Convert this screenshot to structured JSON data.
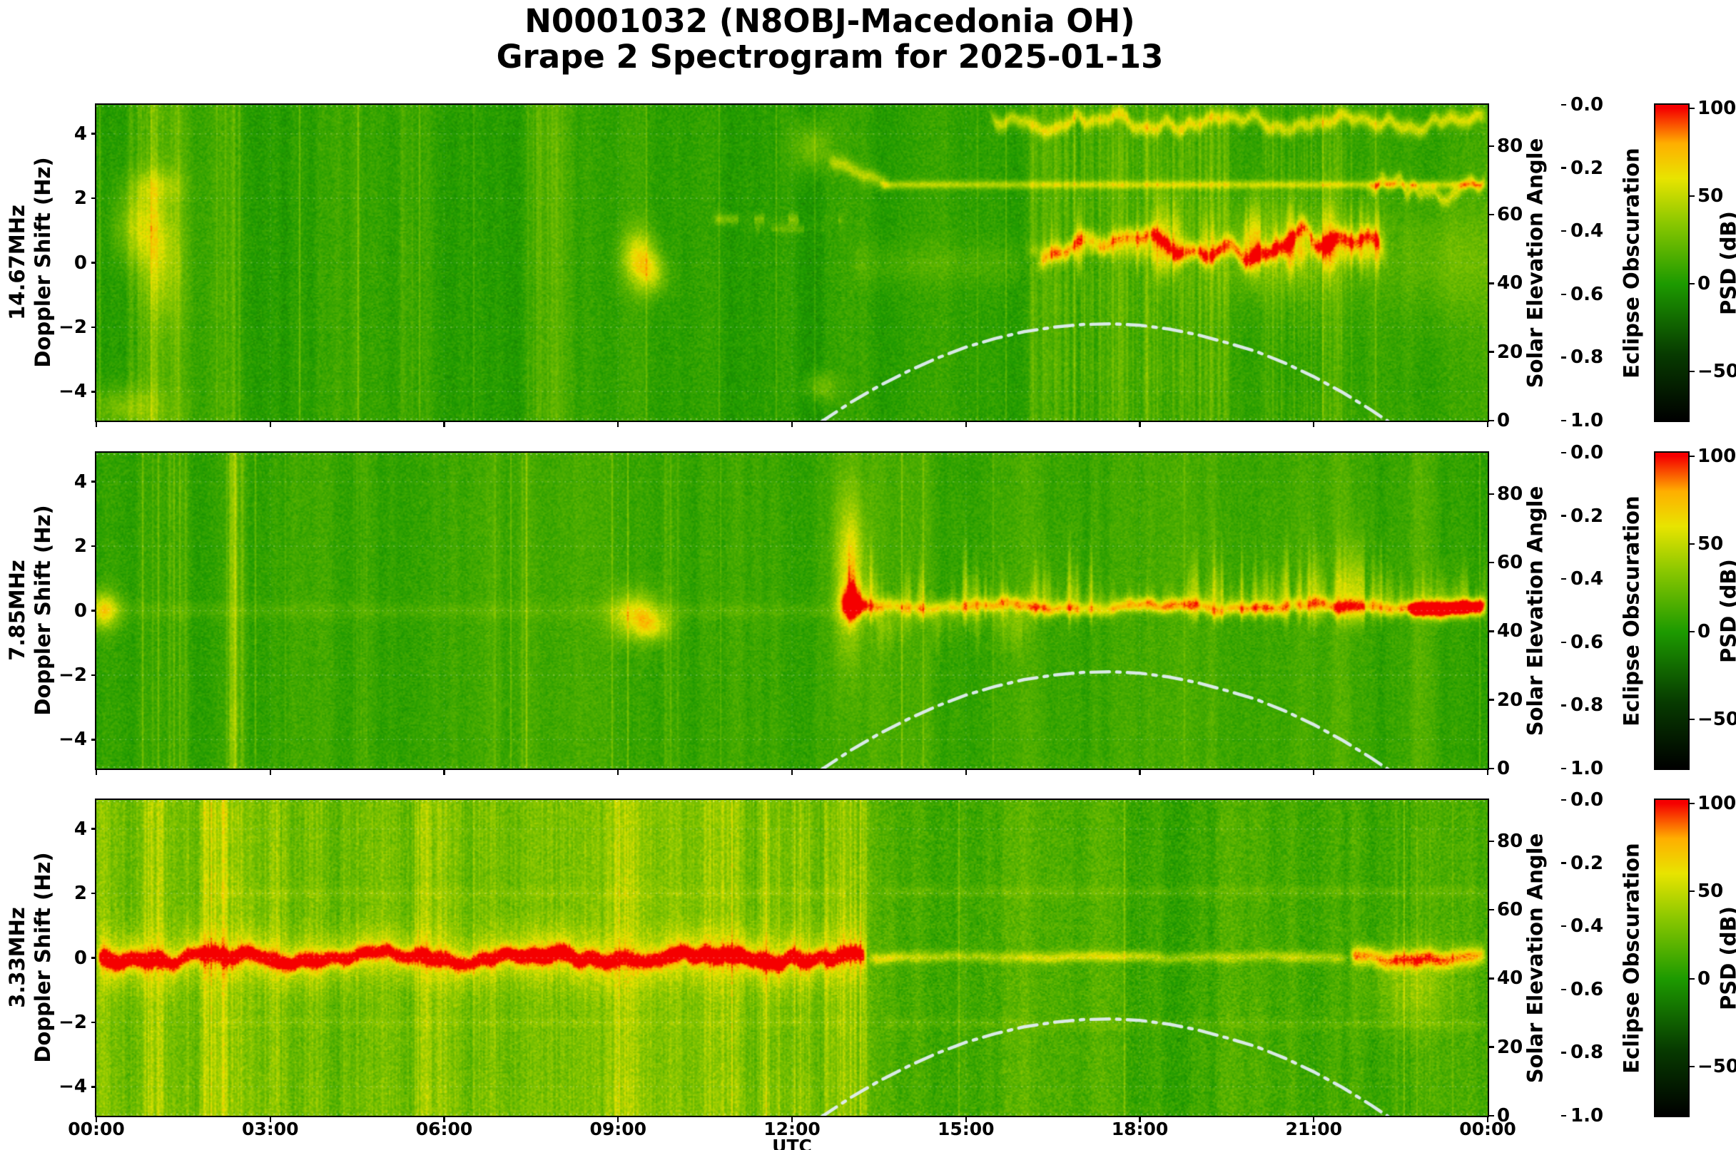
{
  "title": {
    "line1": "N0001032 (N8OBJ-Macedonia OH)",
    "line2": "Grape 2 Spectrogram for 2025-01-13"
  },
  "axes": {
    "x": {
      "label": "UTC",
      "ticks": [
        {
          "h": 0,
          "label": "00:00"
        },
        {
          "h": 3,
          "label": "03:00"
        },
        {
          "h": 6,
          "label": "06:00"
        },
        {
          "h": 9,
          "label": "09:00"
        },
        {
          "h": 12,
          "label": "12:00"
        },
        {
          "h": 15,
          "label": "15:00"
        },
        {
          "h": 18,
          "label": "18:00"
        },
        {
          "h": 21,
          "label": "21:00"
        },
        {
          "h": 24,
          "label": "00:00"
        }
      ]
    },
    "doppler": {
      "label": "Doppler Shift (Hz)",
      "range": [
        -4.9,
        4.9
      ],
      "ticks": [
        {
          "v": 4,
          "label": "4"
        },
        {
          "v": 2,
          "label": "2"
        },
        {
          "v": 0,
          "label": "0"
        },
        {
          "v": -2,
          "label": "−2"
        },
        {
          "v": -4,
          "label": "−4"
        }
      ]
    },
    "solar": {
      "label": "Solar Elevation Angle",
      "range": [
        0,
        92
      ],
      "ticks": [
        {
          "v": 80,
          "label": "80"
        },
        {
          "v": 60,
          "label": "60"
        },
        {
          "v": 40,
          "label": "40"
        },
        {
          "v": 20,
          "label": "20"
        },
        {
          "v": 0,
          "label": "0"
        }
      ]
    },
    "eclipse": {
      "label": "Eclipse Obscuration",
      "range": [
        0,
        1
      ],
      "reversed": true,
      "ticks": [
        {
          "v": 0.0,
          "label": "0.0"
        },
        {
          "v": 0.2,
          "label": "0.2"
        },
        {
          "v": 0.4,
          "label": "0.4"
        },
        {
          "v": 0.6,
          "label": "0.6"
        },
        {
          "v": 0.8,
          "label": "0.8"
        },
        {
          "v": 1.0,
          "label": "1.0"
        }
      ]
    },
    "colorbar": {
      "label": "PSD (dB)",
      "range": [
        -78,
        102
      ],
      "ticks": [
        {
          "v": 100,
          "label": "100"
        },
        {
          "v": 50,
          "label": "50"
        },
        {
          "v": 0,
          "label": "0"
        },
        {
          "v": -50,
          "label": "−50"
        }
      ]
    }
  },
  "panels": [
    {
      "freq_label": "14.67MHz"
    },
    {
      "freq_label": "7.85MHz"
    },
    {
      "freq_label": "3.33MHz"
    }
  ],
  "chart_data": {
    "type": "heatmap",
    "subtype": "doppler-spectrogram",
    "station": "N0001032",
    "callsign": "N8OBJ-Macedonia OH",
    "date": "2025-01-13",
    "x_unit": "UTC hours",
    "x_range": [
      0,
      24
    ],
    "y_unit": "Doppler Shift (Hz)",
    "y_range": [
      -4.9,
      4.9
    ],
    "color_unit": "PSD (dB)",
    "color_range": [
      -78,
      102
    ],
    "colormap": [
      [
        -78,
        "#000000"
      ],
      [
        -40,
        "#073b00"
      ],
      [
        0,
        "#1d9a00"
      ],
      [
        35,
        "#8cc800"
      ],
      [
        60,
        "#e8e400"
      ],
      [
        80,
        "#ffae00"
      ],
      [
        100,
        "#f50000"
      ]
    ],
    "solar_elevation": {
      "style": "dash-dot",
      "color": "#e4eef2",
      "max_deg": 28.2,
      "noon_utc": 17.4,
      "points": [
        [
          12.5,
          -0.4
        ],
        [
          13,
          5.2
        ],
        [
          13.5,
          10.1
        ],
        [
          14,
          14.4
        ],
        [
          14.5,
          18.2
        ],
        [
          15,
          21.4
        ],
        [
          15.5,
          23.9
        ],
        [
          16,
          25.9
        ],
        [
          16.5,
          27.2
        ],
        [
          17,
          28.0
        ],
        [
          17.5,
          28.2
        ],
        [
          18,
          27.8
        ],
        [
          18.5,
          26.7
        ],
        [
          19,
          25.0
        ],
        [
          19.5,
          22.7
        ],
        [
          20,
          20.2
        ],
        [
          20.5,
          16.8
        ],
        [
          21,
          12.8
        ],
        [
          21.5,
          8.2
        ],
        [
          22,
          3.0
        ],
        [
          22.5,
          -2.7
        ],
        [
          23,
          -9.1
        ]
      ]
    },
    "eclipse_obscuration": {
      "curve_visible": false
    },
    "panels": [
      {
        "frequency": "14.67MHz",
        "base": 7,
        "noise": 9,
        "streak": [
          4,
          6
        ],
        "summary": "Quiet green background with vertical fade streaks; bright wiggly trace near +4.3 Hz after 15:30; thin line at +2.4 Hz after 13:30; turbulent yellow-orange activity around 0 to +1 Hz from 16:00 to 22:30; isolated bright blobs near 09:20 and 00:30-01:30.",
        "features": [
          {
            "type": "vband",
            "t": [
              0.5,
              1.5
            ],
            "amp": 13
          },
          {
            "type": "blob",
            "t": 0.75,
            "f": 1.1,
            "rt": 0.28,
            "rf": 0.85,
            "amp": 36
          },
          {
            "type": "blob",
            "t": 1.15,
            "f": 0.1,
            "rt": 0.22,
            "rf": 1.3,
            "amp": 26
          },
          {
            "type": "blob",
            "t": 0.5,
            "f": -4.5,
            "rt": 0.45,
            "rf": 0.45,
            "amp": 26
          },
          {
            "type": "blob",
            "t": 1.05,
            "f": 2.4,
            "rt": 0.3,
            "rf": 0.35,
            "amp": 22
          },
          {
            "type": "vband",
            "t": [
              2.0,
              2.6
            ],
            "amp": 11
          },
          {
            "type": "vband",
            "t": [
              5.2,
              5.55
            ],
            "amp": 9
          },
          {
            "type": "vband",
            "t": [
              7.3,
              8.1
            ],
            "amp": 9
          },
          {
            "type": "blob",
            "t": 9.35,
            "f": 0.15,
            "rt": 0.2,
            "rf": 0.6,
            "amp": 52
          },
          {
            "type": "blob",
            "t": 9.6,
            "f": -0.35,
            "rt": 0.17,
            "rf": 0.45,
            "amp": 34
          },
          {
            "type": "hline",
            "t": [
              10.6,
              12.9
            ],
            "f": 1.35,
            "fw": 0.12,
            "amp": 26,
            "broken": 1
          },
          {
            "type": "hline",
            "t": [
              11.1,
              12.6
            ],
            "f": 1.05,
            "fw": 0.1,
            "amp": 16,
            "broken": 1
          },
          {
            "type": "blob",
            "t": 12.35,
            "f": 3.6,
            "rt": 0.22,
            "rf": 0.55,
            "amp": 28
          },
          {
            "type": "blob",
            "t": 12.5,
            "f": -3.85,
            "rt": 0.18,
            "rf": 0.3,
            "amp": 24
          },
          {
            "type": "wiggly",
            "t": [
              12.6,
              13.7
            ],
            "f": 3.05,
            "drift": -0.6,
            "wamp": 0.22,
            "fw": 0.16,
            "amp": 38
          },
          {
            "type": "hline",
            "t": [
              13.5,
              24
            ],
            "f": 2.42,
            "fw": 0.09,
            "amp": 40
          },
          {
            "type": "wiggly",
            "t": [
              21.9,
              24
            ],
            "f": 2.3,
            "wamp": 0.38,
            "fw": 0.15,
            "amp": 38,
            "wf": 1.6
          },
          {
            "type": "wiggly",
            "t": [
              15.4,
              24
            ],
            "f": 4.35,
            "wamp": 0.3,
            "fw": 0.16,
            "amp": 46,
            "wf": 1.3
          },
          {
            "type": "spikes",
            "t": [
              16.0,
              22.3
            ],
            "f": 0.35,
            "up": 1.3,
            "down": 1.0,
            "amp": 48,
            "rough": 1.1
          },
          {
            "type": "wiggly",
            "t": [
              16.2,
              22.2
            ],
            "f": 0.45,
            "wamp": 0.55,
            "fw": 0.2,
            "amp": 50,
            "wf": 0.8
          },
          {
            "type": "vband",
            "t": [
              16.0,
              19.6
            ],
            "amp": 15
          },
          {
            "type": "vband",
            "t": [
              20.1,
              21.6
            ],
            "amp": 11
          },
          {
            "type": "blob",
            "t": 20.5,
            "f": 0.4,
            "rt": 0.85,
            "rf": 1.0,
            "amp": 26
          },
          {
            "type": "blob",
            "t": 23.4,
            "f": 0.1,
            "rt": 0.8,
            "rf": 1.2,
            "amp": 16
          },
          {
            "type": "hline",
            "t": [
              13.0,
              16.0
            ],
            "f": -0.05,
            "fw": 0.45,
            "amp": 9
          }
        ]
      },
      {
        "frequency": "7.85MHz",
        "base": 10,
        "noise": 9,
        "streak": [
          4,
          6
        ],
        "summary": "Green background; faint carrier near 0 Hz in the morning with a bright blob near 09:20; strong spiky yellow-orange carrier with upward flares from about 12:50 through 24:00, red core near 13:00 and after 22:40; bright vertical band near 02:20.",
        "features": [
          {
            "type": "blob",
            "t": 0.12,
            "f": 0.0,
            "rt": 0.2,
            "rf": 0.4,
            "amp": 58
          },
          {
            "type": "vband",
            "t": [
              1.15,
              1.6
            ],
            "amp": 14
          },
          {
            "type": "vband",
            "t": [
              2.2,
              2.65
            ],
            "amp": 18
          },
          {
            "type": "vband",
            "t": [
              4.4,
              4.75
            ],
            "amp": 9
          },
          {
            "type": "vband",
            "t": [
              6.7,
              7.0
            ],
            "amp": 8
          },
          {
            "type": "vband",
            "t": [
              9.7,
              10.1
            ],
            "amp": 9
          },
          {
            "type": "blob",
            "t": 9.3,
            "f": -0.15,
            "rt": 0.3,
            "rf": 0.5,
            "amp": 50
          },
          {
            "type": "blob",
            "t": 9.6,
            "f": -0.5,
            "rt": 0.2,
            "rf": 0.3,
            "amp": 36
          },
          {
            "type": "hline",
            "t": [
              0,
              12.85
            ],
            "f": 0.0,
            "fw": 0.18,
            "amp": 7
          },
          {
            "type": "spikes",
            "t": [
              12.85,
              24
            ],
            "f": 0.1,
            "up": 1.5,
            "down": 0.7,
            "amp": 45,
            "rough": 1.3
          },
          {
            "type": "carrier",
            "t": [
              12.85,
              24
            ],
            "f": 0.12,
            "wamp": 0.13,
            "fw": 0.15,
            "amp": 48
          },
          {
            "type": "blob",
            "t": 13.0,
            "f": 1.3,
            "rt": 0.17,
            "rf": 1.7,
            "amp": 50
          },
          {
            "type": "blob",
            "t": 13.02,
            "f": 0.2,
            "rt": 0.13,
            "rf": 0.35,
            "amp": 80
          },
          {
            "type": "spikes",
            "t": [
              13.2,
              16.2
            ],
            "f": -0.2,
            "up": 0.25,
            "down": 1.5,
            "amp": 20,
            "rough": 0.9
          },
          {
            "type": "carrier",
            "t": [
              22.6,
              24
            ],
            "f": 0.05,
            "wamp": 0.1,
            "fw": 0.17,
            "amp": 78
          }
        ]
      },
      {
        "frequency": "3.33MHz",
        "base": 20,
        "noise": 12,
        "streak": [
          5,
          7
        ],
        "summary": "Bright yellow-green mottled background with many vertical streaks before 13:30; strong red-orange wiggly carrier at 0 Hz from 00:00 to about 13:15, thin faint yellow line until about 21:30, brightening again toward 24:00; darker calmer green after 13:30 with faint horizontal bands near ±2 Hz.",
        "features": [
          {
            "type": "vband",
            "t": [
              0,
              13.4
            ],
            "amp": 8
          },
          {
            "type": "vband",
            "t": [
              13.45,
              24
            ],
            "amp": -6
          },
          {
            "type": "vband",
            "t": [
              0.75,
              1.25
            ],
            "amp": 16
          },
          {
            "type": "vband",
            "t": [
              1.75,
              2.55
            ],
            "amp": 20
          },
          {
            "type": "vband",
            "t": [
              2.95,
              3.35
            ],
            "amp": 14
          },
          {
            "type": "vband",
            "t": [
              4.15,
              4.6
            ],
            "amp": 13
          },
          {
            "type": "vband",
            "t": [
              5.4,
              6.1
            ],
            "amp": 13
          },
          {
            "type": "vband",
            "t": [
              6.5,
              7.05
            ],
            "amp": 13
          },
          {
            "type": "vband",
            "t": [
              8.7,
              9.4
            ],
            "amp": 15
          },
          {
            "type": "vband",
            "t": [
              10.4,
              11.1
            ],
            "amp": 13
          },
          {
            "type": "vband",
            "t": [
              11.4,
              12.4
            ],
            "amp": 16
          },
          {
            "type": "vband",
            "t": [
              12.5,
              13.35
            ],
            "amp": 18
          },
          {
            "type": "vband",
            "t": [
              22.3,
              23.1
            ],
            "amp": 9
          },
          {
            "type": "carrier",
            "t": [
              0,
              13.3
            ],
            "f": 0.0,
            "wamp": 0.2,
            "fw": 0.55,
            "amp": 30,
            "ws": 5
          },
          {
            "type": "carrier",
            "t": [
              0,
              13.3
            ],
            "f": 0.0,
            "wamp": 0.2,
            "fw": 0.17,
            "amp": 82,
            "ws": 5
          },
          {
            "type": "carrier",
            "t": [
              13.3,
              21.6
            ],
            "f": 0.02,
            "wamp": 0.05,
            "fw": 0.12,
            "amp": 38
          },
          {
            "type": "carrier",
            "t": [
              21.6,
              24
            ],
            "f": 0.0,
            "wamp": 0.12,
            "fw": 0.2,
            "amp": 62
          },
          {
            "type": "blob",
            "t": 22.7,
            "f": -0.9,
            "rt": 0.5,
            "rf": 0.9,
            "amp": 22
          },
          {
            "type": "hline",
            "t": [
              13.5,
              24
            ],
            "f": 2.05,
            "fw": 0.12,
            "amp": 8
          },
          {
            "type": "hline",
            "t": [
              13.5,
              24
            ],
            "f": -2.05,
            "fw": 0.12,
            "amp": 7
          },
          {
            "type": "hline",
            "t": [
              2.0,
              13.0
            ],
            "f": 2.0,
            "fw": 0.12,
            "amp": 6
          },
          {
            "type": "hline",
            "t": [
              2.0,
              13.0
            ],
            "f": -2.0,
            "fw": 0.1,
            "amp": 5
          }
        ]
      }
    ]
  }
}
